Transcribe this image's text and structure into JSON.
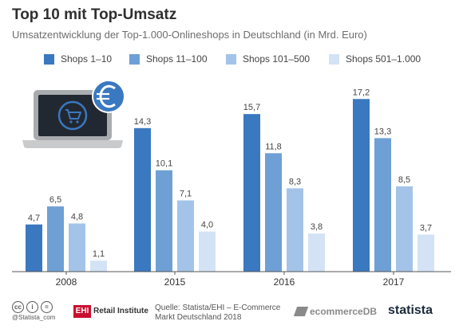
{
  "header": {
    "title": "Top 10 mit Top-Umsatz",
    "subtitle": "Umsatzentwicklung der Top-1.000-Onlineshops in Deutschland (in Mrd. Euro)"
  },
  "chart_data": {
    "type": "bar",
    "title": "Top 10 mit Top-Umsatz",
    "subtitle": "Umsatzentwicklung der Top-1.000-Onlineshops in Deutschland (in Mrd. Euro)",
    "categories": [
      "2008",
      "2015",
      "2016",
      "2017"
    ],
    "series": [
      {
        "name": "Shops 1–10",
        "color": "#3a78c0",
        "values": [
          4.7,
          14.3,
          15.7,
          17.2
        ],
        "labels": [
          "4,7",
          "14,3",
          "15,7",
          "17,2"
        ]
      },
      {
        "name": "Shops 11–100",
        "color": "#6fa0d5",
        "values": [
          6.5,
          10.1,
          11.8,
          13.3
        ],
        "labels": [
          "6,5",
          "10,1",
          "11,8",
          "13,3"
        ]
      },
      {
        "name": "Shops 101–500",
        "color": "#a3c4e8",
        "values": [
          4.8,
          7.1,
          8.3,
          8.5
        ],
        "labels": [
          "4,8",
          "7,1",
          "8,3",
          "8,5"
        ]
      },
      {
        "name": "Shops 501–1.000",
        "color": "#d3e3f5",
        "values": [
          1.1,
          4.0,
          3.8,
          3.7
        ],
        "labels": [
          "1,1",
          "4,0",
          "3,8",
          "3,7"
        ]
      }
    ],
    "ylim": [
      0,
      18
    ],
    "grid": false,
    "legend": "top"
  },
  "illustration": {
    "icon": "laptop-shopping-cart-euro-icon",
    "colors": {
      "screen": "#222831",
      "body": "#a9acaf",
      "cart": "#3a78c0",
      "euro": "#3a78c0"
    }
  },
  "footer": {
    "license_icons": [
      "cc-icon",
      "by-icon",
      "nd-icon"
    ],
    "license_glyphs": [
      "cc",
      "i",
      "="
    ],
    "handle": "@Statista_com",
    "ehi_box": "EHI",
    "ehi_text": "Retail Institute",
    "source_line1": "Quelle: Statista/EHI – E-Commerce",
    "source_line2": "Markt Deutschland 2018",
    "ecommercedb": "ecommerceDB",
    "statista": "statista"
  }
}
